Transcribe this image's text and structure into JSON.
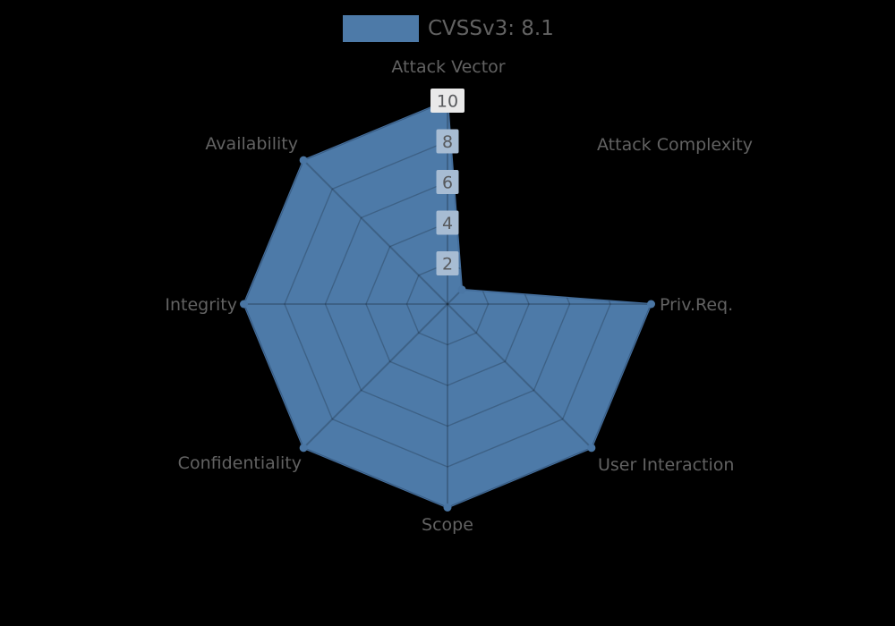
{
  "page": {
    "background": "#000000"
  },
  "legend": {
    "label": "CVSSv3: 8.1",
    "swatch_color": "#4d7aa8"
  },
  "chart_data": {
    "type": "radar",
    "title": "",
    "categories": [
      "Attack Vector",
      "Attack Complexity",
      "Priv.Req.",
      "User Interaction",
      "Scope",
      "Confidentiality",
      "Integrity",
      "Availability"
    ],
    "series": [
      {
        "name": "CVSSv3: 8.1",
        "values": [
          10,
          1,
          10,
          10,
          10,
          10,
          10,
          10
        ]
      }
    ],
    "rmin": 0,
    "rmax": 10,
    "rticks": [
      2,
      4,
      6,
      8,
      10
    ],
    "grid": "on",
    "grid_shape": "octagon",
    "start_axis": "top",
    "direction": "clockwise",
    "legend_position": "top-center"
  },
  "colors": {
    "background": "#000000",
    "series_fill": "#4d7aa8",
    "series_stroke": "#446e9c",
    "marker": "#4a76a4",
    "grid_line": "rgba(0,0,0,0.20)",
    "tick_box_outside": "#e9e9e9",
    "tick_box_inside": "#a7bcd3",
    "tick_text": "#57595c",
    "axis_label_text": "#626262",
    "legend_text": "#626262"
  }
}
